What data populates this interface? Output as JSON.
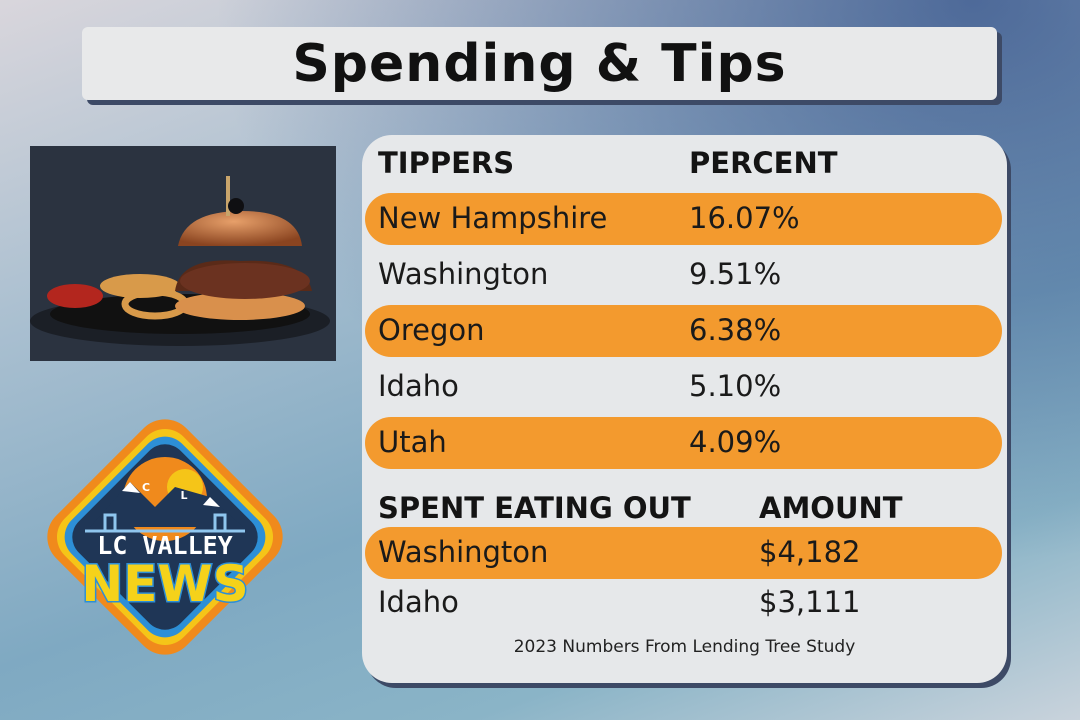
{
  "header": {
    "title": "Spending & Tips"
  },
  "tipping_table": {
    "headers": [
      "TIPPERS",
      "PERCENT"
    ],
    "rows": [
      [
        "New Hampshire",
        "16.07%"
      ],
      [
        "Washington",
        "9.51%"
      ],
      [
        "Oregon",
        "6.38%"
      ],
      [
        "Idaho",
        "5.10%"
      ],
      [
        "Utah",
        "4.09%"
      ]
    ]
  },
  "spending_table": {
    "headers": [
      "SPENT EATING OUT",
      "AMOUNT"
    ],
    "rows": [
      [
        "Washington",
        "$4,182"
      ],
      [
        "Idaho",
        "$3,111"
      ]
    ]
  },
  "footnote": "2023 Numbers From Lending Tree Study",
  "logo": {
    "line1": "LC VALLEY",
    "line2": "NEWS",
    "peak_letters": [
      "C",
      "L"
    ]
  }
}
